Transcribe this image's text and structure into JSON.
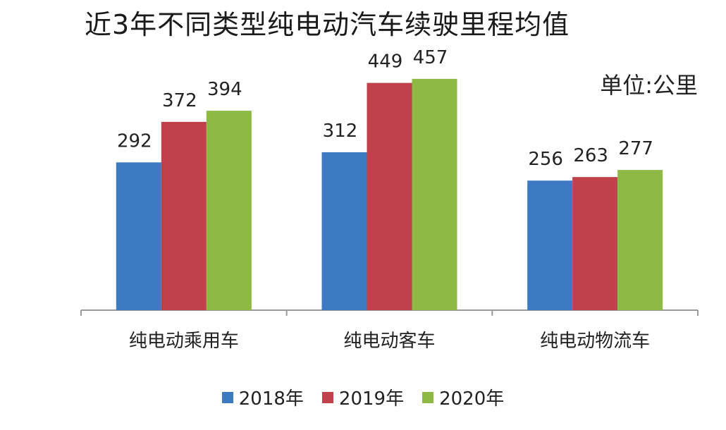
{
  "chart_data": {
    "type": "bar",
    "title": "近3年不同类型纯电动汽车续驶里程均值",
    "unit_note": "单位:公里",
    "categories": [
      "纯电动乘用车",
      "纯电动客车",
      "纯电动物流车"
    ],
    "series": [
      {
        "name": "2018年",
        "color": "#3E7AC1",
        "values": [
          292,
          312,
          256
        ]
      },
      {
        "name": "2019年",
        "color": "#C0404B",
        "values": [
          372,
          449,
          263
        ]
      },
      {
        "name": "2020年",
        "color": "#8DB944",
        "values": [
          394,
          457,
          277
        ]
      }
    ],
    "ylim": [
      0,
      600
    ],
    "grid": false,
    "legend_position": "bottom",
    "data_labels": true
  }
}
